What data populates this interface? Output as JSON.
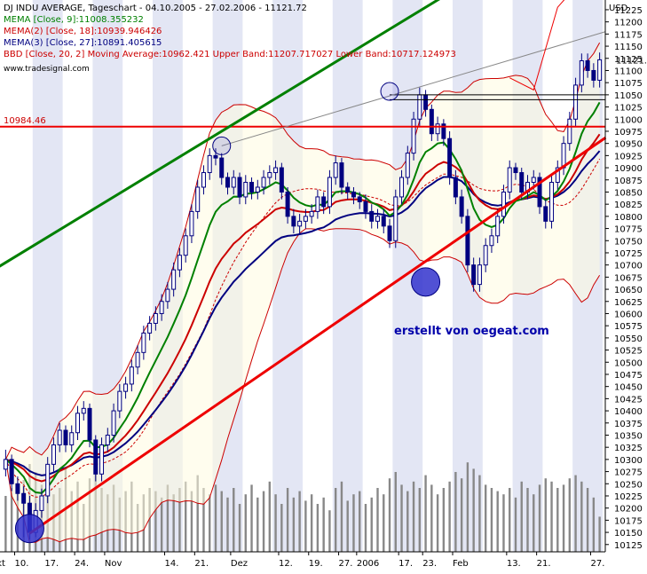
{
  "header": {
    "title": "DJ INDU AVERAGE, Tageschart - 04.10.2005 - 27.02.2006 - 11121.72",
    "legend": [
      {
        "text": "MEMA [Close, 9]:11008.355232",
        "color": "#008000"
      },
      {
        "text": "MEMA(2) [Close, 18]:10939.946426",
        "color": "#cc0000"
      },
      {
        "text": "MEMA(3) [Close, 27]:10891.405615",
        "color": "#000080"
      },
      {
        "text": "BBD [Close, 20, 2] Moving Average:10962.421 Upper Band:11207.717027 Lower Band:10717.124973",
        "color": "#cc0000"
      }
    ],
    "source": "www.tradesignal.com"
  },
  "watermark": "erstellt von oegeat.com",
  "currency": "USD",
  "price_tag": "11121.72",
  "level_tag": "10984.46",
  "colors": {
    "background": "#ffffff",
    "stripe": "#e3e6f4",
    "candle": "#000080",
    "volume": "#888888",
    "ema9": "#008000",
    "ema18": "#cc0000",
    "ema27": "#000080",
    "bollinger": "#cc0000",
    "trendline_upper": "#008000",
    "trendline_lower": "#ee0000",
    "marker": "#3333cc"
  },
  "chart_data": {
    "type": "candlestick",
    "title": "DJ INDU AVERAGE, Tageschart - 04.10.2005 - 27.02.2006 - 11121.72",
    "ylabel": "USD",
    "ylim": [
      10110,
      11245
    ],
    "y_ticks": [
      10125,
      10150,
      10175,
      10200,
      10225,
      10250,
      10275,
      10300,
      10325,
      10350,
      10375,
      10400,
      10425,
      10450,
      10475,
      10500,
      10525,
      10550,
      10575,
      10600,
      10625,
      10650,
      10675,
      10700,
      10725,
      10750,
      10775,
      10800,
      10825,
      10850,
      10875,
      10900,
      10925,
      10950,
      10975,
      11000,
      11025,
      11050,
      11075,
      11100,
      11125,
      11150,
      11175,
      11200,
      11225
    ],
    "x_tick_labels": [
      "kt",
      "10.",
      "17.",
      "24.",
      "Nov",
      "14.",
      "21.",
      "Dez",
      "12.",
      "19.",
      "27.",
      "2006",
      "17.",
      "23.",
      "Feb",
      "13.",
      "21.",
      "27."
    ],
    "bars": 100,
    "close": [
      10300,
      10250,
      10230,
      10210,
      10150,
      10195,
      10225,
      10290,
      10330,
      10360,
      10330,
      10355,
      10395,
      10405,
      10340,
      10270,
      10330,
      10350,
      10400,
      10440,
      10455,
      10490,
      10520,
      10560,
      10580,
      10600,
      10625,
      10650,
      10690,
      10720,
      10760,
      10810,
      10860,
      10890,
      10925,
      10920,
      10880,
      10860,
      10880,
      10840,
      10870,
      10850,
      10860,
      10880,
      10890,
      10900,
      10850,
      10800,
      10780,
      10790,
      10800,
      10810,
      10840,
      10820,
      10880,
      10910,
      10860,
      10850,
      10840,
      10830,
      10810,
      10790,
      10800,
      10780,
      10750,
      10840,
      10880,
      10930,
      11000,
      11050,
      11020,
      10970,
      10990,
      10960,
      10880,
      10840,
      10800,
      10700,
      10660,
      10700,
      10740,
      10760,
      10800,
      10850,
      10900,
      10890,
      10850,
      10870,
      10880,
      10820,
      10790,
      10870,
      10900,
      10950,
      11000,
      11070,
      11120,
      11100,
      11080,
      11122
    ],
    "open": [
      10280,
      10300,
      10250,
      10230,
      10210,
      10150,
      10195,
      10225,
      10290,
      10330,
      10360,
      10330,
      10355,
      10395,
      10405,
      10340,
      10270,
      10330,
      10350,
      10400,
      10440,
      10455,
      10490,
      10520,
      10560,
      10580,
      10600,
      10625,
      10650,
      10690,
      10720,
      10760,
      10810,
      10860,
      10890,
      10925,
      10920,
      10880,
      10860,
      10880,
      10840,
      10870,
      10850,
      10860,
      10880,
      10890,
      10900,
      10850,
      10800,
      10780,
      10790,
      10800,
      10810,
      10840,
      10820,
      10880,
      10910,
      10860,
      10850,
      10840,
      10830,
      10810,
      10790,
      10800,
      10780,
      10750,
      10840,
      10880,
      10930,
      11000,
      11050,
      11020,
      10970,
      10990,
      10960,
      10880,
      10840,
      10800,
      10700,
      10660,
      10700,
      10740,
      10760,
      10800,
      10850,
      10900,
      10890,
      10850,
      10870,
      10880,
      10820,
      10790,
      10870,
      10900,
      10950,
      11000,
      11070,
      11120,
      11100,
      11080
    ],
    "high": [
      10320,
      10310,
      10265,
      10245,
      10225,
      10210,
      10240,
      10305,
      10345,
      10375,
      10370,
      10370,
      10410,
      10420,
      10415,
      10350,
      10345,
      10365,
      10415,
      10455,
      10470,
      10505,
      10535,
      10575,
      10595,
      10615,
      10640,
      10665,
      10705,
      10735,
      10775,
      10825,
      10875,
      10905,
      10940,
      10940,
      10930,
      10890,
      10895,
      10890,
      10885,
      10880,
      10875,
      10895,
      10905,
      10915,
      10910,
      10860,
      10815,
      10805,
      10815,
      10825,
      10855,
      10850,
      10895,
      10925,
      10920,
      10870,
      10860,
      10850,
      10845,
      10825,
      10815,
      10815,
      10795,
      10855,
      10895,
      10945,
      11015,
      11065,
      11060,
      11030,
      11005,
      11000,
      10975,
      10895,
      10855,
      10815,
      10715,
      10715,
      10755,
      10775,
      10815,
      10865,
      10915,
      10910,
      10900,
      10885,
      10895,
      10890,
      10835,
      10885,
      10915,
      10965,
      11015,
      11085,
      11135,
      11135,
      11115,
      11137
    ],
    "low": [
      10265,
      10235,
      10215,
      10140,
      10135,
      10140,
      10180,
      10210,
      10275,
      10315,
      10315,
      10315,
      10340,
      10380,
      10325,
      10255,
      10255,
      10315,
      10335,
      10385,
      10425,
      10440,
      10475,
      10505,
      10545,
      10565,
      10585,
      10610,
      10635,
      10675,
      10705,
      10745,
      10795,
      10845,
      10875,
      10905,
      10865,
      10845,
      10845,
      10825,
      10825,
      10835,
      10835,
      10845,
      10865,
      10875,
      10835,
      10785,
      10765,
      10765,
      10775,
      10785,
      10795,
      10805,
      10805,
      10865,
      10845,
      10835,
      10825,
      10815,
      10795,
      10775,
      10775,
      10765,
      10735,
      10735,
      10825,
      10865,
      10915,
      10985,
      11005,
      10955,
      10955,
      10945,
      10865,
      10825,
      10785,
      10685,
      10645,
      10645,
      10685,
      10725,
      10745,
      10785,
      10835,
      10875,
      10835,
      10835,
      10855,
      10805,
      10775,
      10775,
      10855,
      10885,
      10935,
      10985,
      11055,
      11085,
      11065,
      11065
    ],
    "volume": [
      0.35,
      0.4,
      0.38,
      0.45,
      0.55,
      0.5,
      0.42,
      0.48,
      0.36,
      0.4,
      0.52,
      0.38,
      0.44,
      0.3,
      0.46,
      0.5,
      0.4,
      0.36,
      0.42,
      0.34,
      0.38,
      0.44,
      0.3,
      0.36,
      0.4,
      0.38,
      0.34,
      0.42,
      0.36,
      0.4,
      0.44,
      0.38,
      0.48,
      0.4,
      0.36,
      0.42,
      0.38,
      0.34,
      0.4,
      0.3,
      0.36,
      0.42,
      0.34,
      0.38,
      0.44,
      0.36,
      0.3,
      0.4,
      0.34,
      0.38,
      0.32,
      0.36,
      0.3,
      0.34,
      0.26,
      0.4,
      0.44,
      0.32,
      0.36,
      0.38,
      0.3,
      0.34,
      0.4,
      0.36,
      0.46,
      0.5,
      0.42,
      0.38,
      0.44,
      0.4,
      0.48,
      0.42,
      0.36,
      0.4,
      0.44,
      0.5,
      0.46,
      0.56,
      0.52,
      0.48,
      0.42,
      0.4,
      0.38,
      0.36,
      0.4,
      0.34,
      0.44,
      0.4,
      0.36,
      0.42,
      0.46,
      0.44,
      0.4,
      0.42,
      0.46,
      0.48,
      0.44,
      0.4,
      0.34,
      0.22
    ],
    "ema9_last": 11008.355232,
    "ema18_last": 10939.946426,
    "ema27_last": 10891.405615,
    "bollinger": {
      "period": 20,
      "stddev": 2,
      "moving_average": 10962.421,
      "upper": 11207.717027,
      "lower": 10717.124973
    },
    "horizontal_lines": [
      {
        "value": 10984.46,
        "color": "#ee0000"
      },
      {
        "value": 11050,
        "color": "#000000"
      },
      {
        "value": 11040,
        "color": "#000000"
      }
    ],
    "trendlines": [
      {
        "name": "upper-channel",
        "from": [
          -2,
          10690
        ],
        "to": [
          74,
          11260
        ],
        "color": "#008000"
      },
      {
        "name": "lower-channel",
        "from": [
          4,
          10148
        ],
        "to": [
          100,
          10962
        ],
        "color": "#ee0000"
      },
      {
        "name": "resistance",
        "from": [
          36,
          10945
        ],
        "to": [
          100,
          11180
        ],
        "color": "#888888"
      }
    ],
    "projection": [
      [
        84,
        11085
      ],
      [
        88,
        11060
      ],
      [
        92,
        11230
      ],
      [
        97,
        11300
      ]
    ],
    "markers": [
      {
        "bar": 4,
        "value": 10158
      },
      {
        "bar": 36,
        "value": 10945
      },
      {
        "bar": 64,
        "value": 11057
      },
      {
        "bar": 70,
        "value": 10665
      }
    ]
  }
}
